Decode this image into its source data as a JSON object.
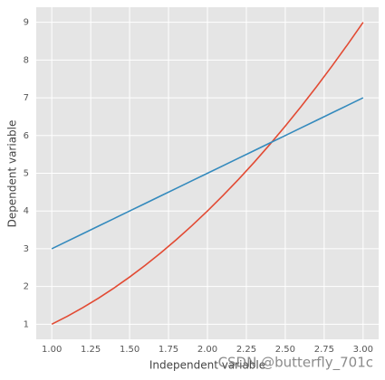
{
  "chart_data": {
    "type": "line",
    "x_label": "Independent variable",
    "y_label": "Dependent variable",
    "watermark": "CSDN @butterfly_701c",
    "x": [
      1.0,
      1.1,
      1.2,
      1.3,
      1.4,
      1.5,
      1.6,
      1.7,
      1.8,
      1.9,
      2.0,
      2.1,
      2.2,
      2.3,
      2.4,
      2.5,
      2.6,
      2.7,
      2.8,
      2.9,
      3.0
    ],
    "series": [
      {
        "color": "#E24A33",
        "values": [
          1.0,
          1.21,
          1.44,
          1.69,
          1.96,
          2.25,
          2.56,
          2.89,
          3.24,
          3.61,
          4.0,
          4.41,
          4.84,
          5.29,
          5.76,
          6.25,
          6.76,
          7.29,
          7.84,
          8.41,
          9.0
        ]
      },
      {
        "color": "#348ABD",
        "values": [
          3.0,
          3.2,
          3.4,
          3.6,
          3.8,
          4.0,
          4.2,
          4.4,
          4.6,
          4.8,
          5.0,
          5.2,
          5.4,
          5.6,
          5.8,
          6.0,
          6.2,
          6.4,
          6.6,
          6.8,
          7.0
        ]
      }
    ],
    "xlim": [
      0.9,
      3.1
    ],
    "ylim": [
      0.6,
      9.4
    ],
    "xticks": [
      {
        "value": 1.0,
        "label": "1.00"
      },
      {
        "value": 1.25,
        "label": "1.25"
      },
      {
        "value": 1.5,
        "label": "1.50"
      },
      {
        "value": 1.75,
        "label": "1.75"
      },
      {
        "value": 2.0,
        "label": "2.00"
      },
      {
        "value": 2.25,
        "label": "2.25"
      },
      {
        "value": 2.5,
        "label": "2.50"
      },
      {
        "value": 2.75,
        "label": "2.75"
      },
      {
        "value": 3.0,
        "label": "3.00"
      }
    ],
    "yticks": [
      1,
      2,
      3,
      4,
      5,
      6,
      7,
      8,
      9
    ],
    "grid": true,
    "background": "#E5E5E5"
  }
}
